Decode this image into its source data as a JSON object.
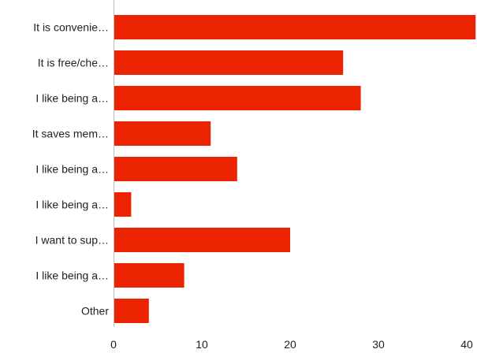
{
  "chart_data": {
    "type": "bar",
    "orientation": "horizontal",
    "categories": [
      "It is convenie…",
      "It is free/che…",
      "I like being a…",
      "It saves mem…",
      "I like being a…",
      "I like being a…",
      "I want to sup…",
      "I like being a…",
      "Other"
    ],
    "values": [
      41,
      26,
      28,
      11,
      14,
      2,
      20,
      8,
      4
    ],
    "xlim": [
      0,
      40
    ],
    "xticks": [
      "0",
      "10",
      "20",
      "30",
      "40"
    ],
    "title": "",
    "xlabel": "",
    "ylabel": "",
    "bar_color": "#ec2300",
    "axis_color": "#bbbbbb",
    "text_color": "#222222",
    "grid": false
  }
}
